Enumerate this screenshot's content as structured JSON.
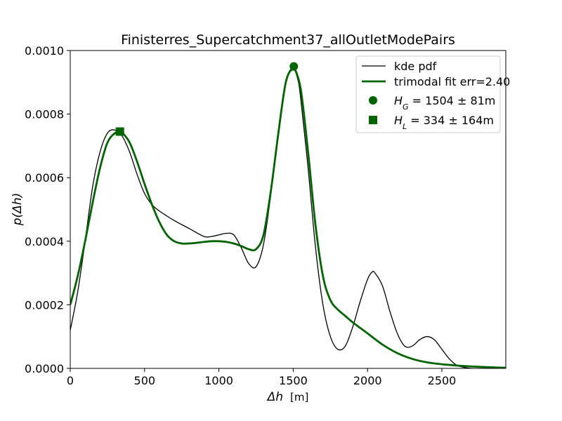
{
  "chart_data": {
    "type": "line",
    "title": "Finisterres_Supercatchment37_allOutletModePairs",
    "xlabel_symbol": "Δh",
    "xlabel_unit": "[m]",
    "ylabel": "p(Δh)",
    "xlim": [
      0,
      2930
    ],
    "ylim": [
      0,
      0.001
    ],
    "xticks": [
      0,
      500,
      1000,
      1500,
      2000,
      2500
    ],
    "yticks": [
      "0.0000",
      "0.0002",
      "0.0004",
      "0.0006",
      "0.0008",
      "0.0010"
    ],
    "grid": false,
    "legend_position": "top-right",
    "colors": {
      "kde": "#000000",
      "fit": "#006400"
    },
    "series": [
      {
        "name": "kde pdf",
        "style": "thin black line",
        "x": [
          0,
          50,
          100,
          150,
          200,
          250,
          300,
          350,
          400,
          450,
          500,
          550,
          600,
          700,
          800,
          900,
          950,
          1000,
          1050,
          1100,
          1150,
          1200,
          1250,
          1300,
          1350,
          1400,
          1450,
          1500,
          1530,
          1550,
          1600,
          1650,
          1700,
          1750,
          1800,
          1850,
          1900,
          1950,
          2000,
          2030,
          2050,
          2100,
          2150,
          2200,
          2250,
          2300,
          2350,
          2400,
          2450,
          2500,
          2550,
          2600,
          2650,
          2700,
          2800,
          2930
        ],
        "y": [
          0.00012,
          0.00024,
          0.0004,
          0.00057,
          0.00068,
          0.00074,
          0.00075,
          0.00073,
          0.00068,
          0.00061,
          0.00055,
          0.000515,
          0.000495,
          0.000465,
          0.00044,
          0.000415,
          0.000415,
          0.00042,
          0.000425,
          0.00042,
          0.00038,
          0.00033,
          0.00032,
          0.00039,
          0.00055,
          0.00075,
          0.0009,
          0.00094,
          0.00091,
          0.00085,
          0.00063,
          0.00038,
          0.0002,
          0.0001,
          6e-05,
          7e-05,
          0.00013,
          0.00021,
          0.00028,
          0.000303,
          0.0003,
          0.00026,
          0.00018,
          0.00011,
          7e-05,
          7e-05,
          9e-05,
          0.0001,
          9e-05,
          6e-05,
          3e-05,
          1e-05,
          3e-06,
          0,
          0,
          0
        ]
      },
      {
        "name": "trimodal fit err=2.40",
        "style": "thick green line",
        "x": [
          0,
          50,
          100,
          150,
          200,
          250,
          300,
          334,
          350,
          400,
          450,
          500,
          550,
          600,
          650,
          700,
          750,
          800,
          850,
          900,
          950,
          1000,
          1050,
          1100,
          1150,
          1200,
          1250,
          1300,
          1350,
          1400,
          1450,
          1500,
          1504,
          1550,
          1600,
          1650,
          1700,
          1750,
          1800,
          1850,
          1900,
          2000,
          2100,
          2200,
          2300,
          2400,
          2500,
          2600,
          2700,
          2800,
          2930
        ],
        "y": [
          0.0002,
          0.00029,
          0.0004,
          0.00052,
          0.00063,
          0.00071,
          0.00074,
          0.000745,
          0.000742,
          0.00071,
          0.00065,
          0.00058,
          0.000515,
          0.00046,
          0.00042,
          0.0004,
          0.000393,
          0.000393,
          0.000395,
          0.000398,
          0.0004,
          0.0004,
          0.000398,
          0.000393,
          0.000385,
          0.000375,
          0.000375,
          0.00042,
          0.00056,
          0.00074,
          0.0009,
          0.00095,
          0.00095,
          0.00088,
          0.00068,
          0.00045,
          0.00029,
          0.000215,
          0.000185,
          0.000165,
          0.000145,
          0.00011,
          7.5e-05,
          4.8e-05,
          3e-05,
          1.9e-05,
          1.3e-05,
          9e-06,
          6e-06,
          4e-06,
          2e-06
        ]
      }
    ],
    "markers": [
      {
        "label_main": "H",
        "label_sub": "G",
        "label_rest": " = 1504 ± 81m",
        "shape": "circle",
        "x": 1504,
        "y": 0.00095
      },
      {
        "label_main": "H",
        "label_sub": "L",
        "label_rest": " = 334 ± 164m",
        "shape": "square",
        "x": 334,
        "y": 0.000745
      }
    ]
  }
}
